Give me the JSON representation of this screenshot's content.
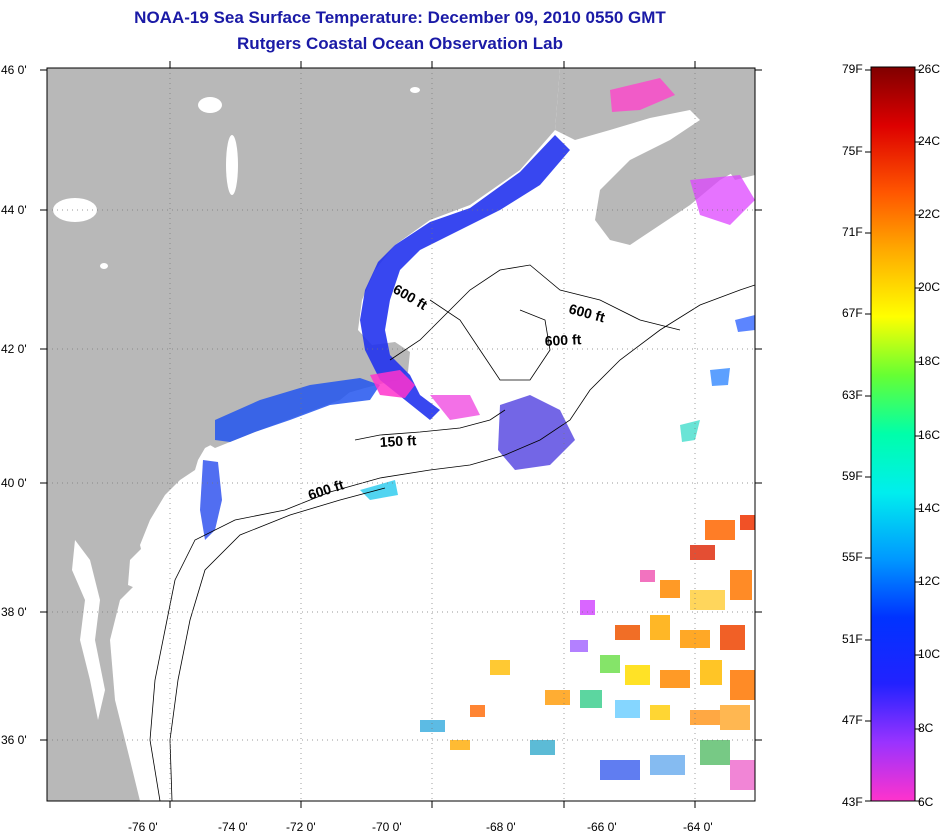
{
  "title": {
    "line1": "NOAA-19 Sea Surface Temperature:  December 09, 2010 0550 GMT",
    "line2": "Rutgers Coastal Ocean Observation Lab"
  },
  "axes": {
    "lat_labels": [
      "46 0'",
      "44 0'",
      "42 0'",
      "40 0'",
      "38 0'",
      "36 0'"
    ],
    "lon_labels": [
      "-76 0'",
      "-74 0'",
      "-72 0'",
      "-70 0'",
      "-68 0'",
      "-66 0'",
      "-64 0'"
    ]
  },
  "contours": {
    "labels": [
      "600 ft",
      "600 ft",
      "600 ft",
      "150 ft",
      "600 ft"
    ]
  },
  "colorbar": {
    "fahrenheit": [
      "79F",
      "75F",
      "71F",
      "67F",
      "63F",
      "59F",
      "55F",
      "51F",
      "47F",
      "43F"
    ],
    "celsius": [
      "26C",
      "24C",
      "22C",
      "20C",
      "18C",
      "16C",
      "14C",
      "12C",
      "10C",
      "8C",
      "6C"
    ]
  },
  "colors": {
    "land": "#b8b8b8",
    "ocean_no_data": "#ffffff",
    "title": "#1a1aa6"
  }
}
